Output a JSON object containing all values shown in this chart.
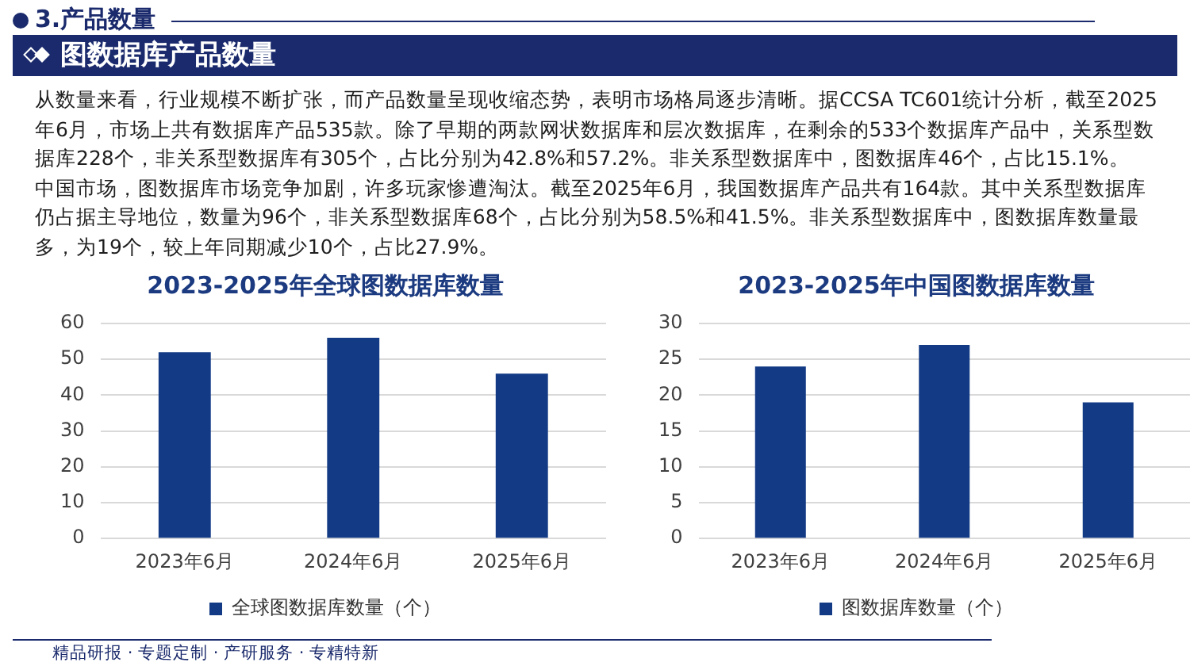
{
  "chart_data": [
    {
      "type": "other",
      "title": "3.产品数量",
      "subtitle": "图数据库产品数量",
      "annotations": [
        "从数量来看，行业规模不断扩张，而产品数量呈现收缩态势，表明市场格局逐步清晰。据CCSA TC601统计分析，截至2025年6月，市场上共有数据库产品535款。除了早期的两款网状数据库和层次数据库，在剩余的533个数据库产品中，关系型数据库228个，非关系型数据库有305个，占比分别为42.8%和57.2%。非关系型数据库中，图数据库46个，占比15.1%。",
        "中国市场，图数据库市场竞争加剧，许多玩家惨遭淘汰。截至2025年6月，我国数据库产品共有164款。其中关系型数据库仍占据主导地位，数量为96个，非关系型数据库68个，占比分别为58.5%和41.5%。非关系型数据库中，图数据库数量最多，为19个，较上年同期减少10个，占比27.9%。",
        "精品研报 · 专题定制 · 产研服务 · 专精特新"
      ]
    },
    {
      "type": "bar",
      "title": "2023-2025年全球图数据库数量",
      "categories": [
        "2023年6月",
        "2024年6月",
        "2025年6月"
      ],
      "series": [
        {
          "name": "全球图数据库数量（个）",
          "color": "#123a85",
          "values": [
            52,
            56,
            46
          ]
        }
      ],
      "ylim": [
        0,
        60
      ],
      "yticks": [
        0,
        10,
        20,
        30,
        40,
        50,
        60
      ],
      "grid": "y",
      "legend": "bottom"
    },
    {
      "type": "bar",
      "title": "2023-2025年中国图数据库数量",
      "categories": [
        "2023年6月",
        "2024年6月",
        "2025年6月"
      ],
      "series": [
        {
          "name": "图数据库数量（个）",
          "color": "#123a85",
          "values": [
            24,
            27,
            19
          ]
        }
      ],
      "ylim": [
        0,
        30
      ],
      "yticks": [
        0,
        5,
        10,
        15,
        20,
        25,
        30
      ],
      "grid": "y",
      "legend": "bottom"
    }
  ]
}
